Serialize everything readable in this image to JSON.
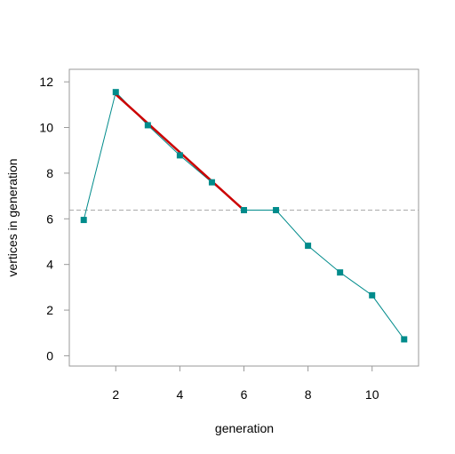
{
  "chart_data": {
    "type": "line",
    "xlabel": "generation",
    "ylabel": "vertices in generation",
    "xlim": [
      0.55,
      11.45
    ],
    "ylim": [
      -0.45,
      12.55
    ],
    "xticks": [
      2,
      4,
      6,
      8,
      10
    ],
    "yticks": [
      0,
      2,
      4,
      6,
      8,
      10,
      12
    ],
    "grid": false,
    "series": [
      {
        "x": [
          1,
          2,
          3,
          4,
          5,
          6,
          7,
          8,
          9,
          10,
          11
        ],
        "y": [
          5.95,
          11.55,
          10.1,
          8.78,
          7.6,
          6.38,
          6.38,
          4.82,
          3.65,
          2.65,
          0.72
        ],
        "color": "#008b8b",
        "marker": "square"
      }
    ],
    "fit_line": {
      "x": [
        2,
        6
      ],
      "y": [
        11.45,
        6.38
      ],
      "color": "#cc0000"
    },
    "reference_line": {
      "y": 6.38,
      "style": "dashed",
      "color": "#aaaaaa"
    }
  }
}
